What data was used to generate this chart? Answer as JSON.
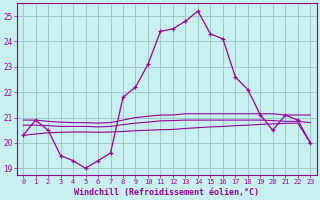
{
  "xlabel": "Windchill (Refroidissement éolien,°C)",
  "background_color": "#c8f0f0",
  "grid_color": "#a0c8c8",
  "line_color": "#990099",
  "x_hours": [
    0,
    1,
    2,
    3,
    4,
    5,
    6,
    7,
    8,
    9,
    10,
    11,
    12,
    13,
    14,
    15,
    16,
    17,
    18,
    19,
    20,
    21,
    22,
    23
  ],
  "temp_line": [
    20.3,
    20.9,
    20.5,
    19.5,
    19.3,
    19.0,
    19.3,
    19.6,
    21.8,
    22.2,
    23.1,
    24.4,
    24.5,
    24.8,
    25.2,
    24.3,
    24.1,
    22.6,
    22.1,
    21.1,
    20.5,
    21.1,
    20.9,
    20.0
  ],
  "smooth_line1": [
    20.9,
    20.9,
    20.85,
    20.82,
    20.8,
    20.8,
    20.78,
    20.8,
    20.9,
    21.0,
    21.05,
    21.1,
    21.1,
    21.15,
    21.15,
    21.15,
    21.15,
    21.15,
    21.15,
    21.15,
    21.15,
    21.1,
    21.1,
    21.1
  ],
  "smooth_line2": [
    20.7,
    20.7,
    20.68,
    20.65,
    20.65,
    20.65,
    20.63,
    20.65,
    20.72,
    20.78,
    20.82,
    20.87,
    20.88,
    20.9,
    20.9,
    20.9,
    20.9,
    20.9,
    20.9,
    20.9,
    20.88,
    20.85,
    20.85,
    20.8
  ],
  "smooth_line3": [
    20.3,
    20.35,
    20.4,
    20.42,
    20.43,
    20.43,
    20.42,
    20.43,
    20.45,
    20.48,
    20.5,
    20.52,
    20.53,
    20.57,
    20.6,
    20.63,
    20.65,
    20.68,
    20.7,
    20.73,
    20.75,
    20.77,
    20.78,
    20.0
  ],
  "ylim": [
    18.75,
    25.5
  ],
  "yticks": [
    19,
    20,
    21,
    22,
    23,
    24,
    25
  ],
  "xlim": [
    -0.5,
    23.5
  ]
}
